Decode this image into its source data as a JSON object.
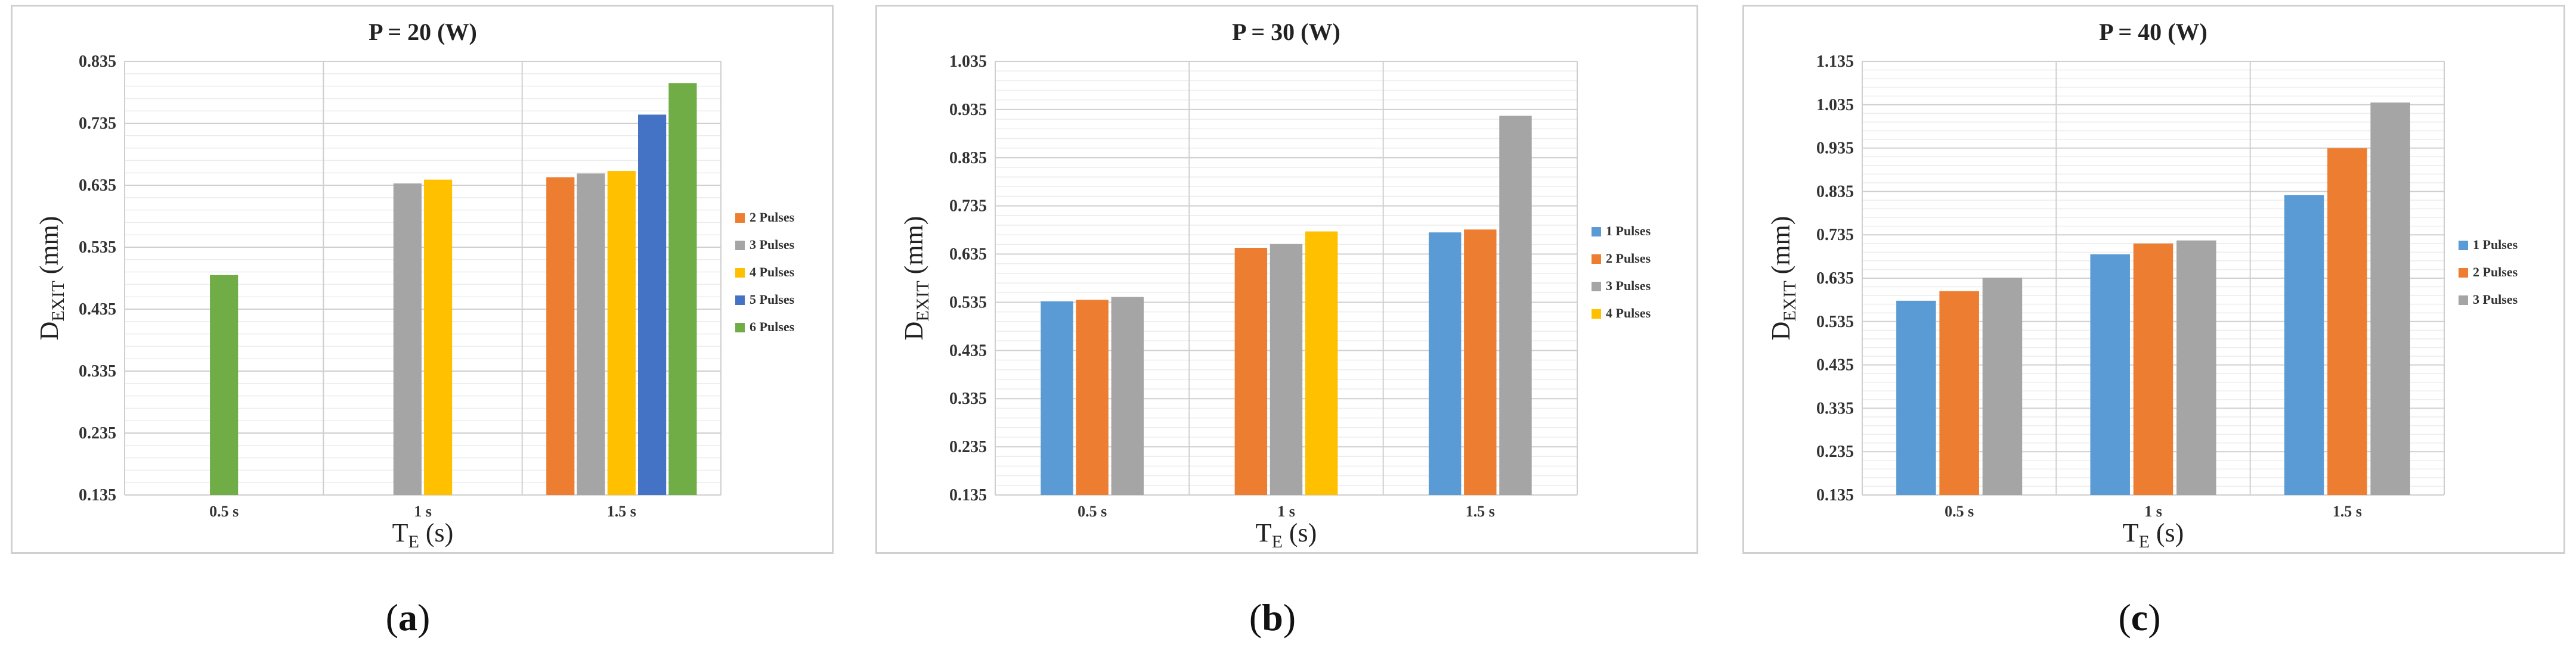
{
  "figure": {
    "captions": [
      "a",
      "b",
      "c"
    ]
  },
  "palette": {
    "1 Pulses": "#5b9bd5",
    "2 Pulses": "#ed7d31",
    "3 Pulses": "#a5a5a5",
    "4 Pulses": "#ffc000",
    "5 Pulses": "#4472c4",
    "6 Pulses": "#70ad47"
  },
  "chart_data": [
    {
      "type": "bar",
      "title": "P = 20 (W)",
      "xlabel": {
        "main": "T",
        "sub": "E",
        "unit": " (s)"
      },
      "ylabel": {
        "main": "D",
        "sub": "EXIT",
        "unit": " (mm)"
      },
      "ylim": [
        0.135,
        0.835
      ],
      "yticks": [
        "0.135",
        "0.235",
        "0.335",
        "0.435",
        "0.535",
        "0.635",
        "0.735",
        "0.835"
      ],
      "categories": [
        "0.5 s",
        "1 s",
        "1.5 s"
      ],
      "series": [
        {
          "name": "2 Pulses",
          "values": [
            null,
            null,
            0.648
          ]
        },
        {
          "name": "3 Pulses",
          "values": [
            null,
            0.638,
            0.654
          ]
        },
        {
          "name": "4 Pulses",
          "values": [
            null,
            0.644,
            0.658
          ]
        },
        {
          "name": "5 Pulses",
          "values": [
            null,
            null,
            0.749
          ]
        },
        {
          "name": "6 Pulses",
          "values": [
            0.49,
            null,
            0.8
          ]
        }
      ],
      "legend": [
        "2 Pulses",
        "3 Pulses",
        "4 Pulses",
        "5 Pulses",
        "6 Pulses"
      ],
      "legend_position": "right"
    },
    {
      "type": "bar",
      "title": "P = 30 (W)",
      "xlabel": {
        "main": "T",
        "sub": "E",
        "unit": " (s)"
      },
      "ylabel": {
        "main": "D",
        "sub": "EXIT",
        "unit": " (mm)"
      },
      "ylim": [
        0.135,
        1.035
      ],
      "yticks": [
        "0.135",
        "0.235",
        "0.335",
        "0.435",
        "0.535",
        "0.635",
        "0.735",
        "0.835",
        "0.935",
        "1.035"
      ],
      "categories": [
        "0.5 s",
        "1 s",
        "1.5 s"
      ],
      "series": [
        {
          "name": "1 Pulses",
          "values": [
            0.537,
            null,
            0.68
          ]
        },
        {
          "name": "2 Pulses",
          "values": [
            0.54,
            0.648,
            0.686
          ]
        },
        {
          "name": "3 Pulses",
          "values": [
            0.546,
            0.656,
            0.922
          ]
        },
        {
          "name": "4 Pulses",
          "values": [
            null,
            0.682,
            null
          ]
        }
      ],
      "legend": [
        "1 Pulses",
        "2 Pulses",
        "3 Pulses",
        "4 Pulses"
      ],
      "legend_position": "right"
    },
    {
      "type": "bar",
      "title": "P = 40 (W)",
      "xlabel": {
        "main": "T",
        "sub": "E",
        "unit": " (s)"
      },
      "ylabel": {
        "main": "D",
        "sub": "EXIT",
        "unit": " (mm)"
      },
      "ylim": [
        0.135,
        1.135
      ],
      "yticks": [
        "0.135",
        "0.235",
        "0.335",
        "0.435",
        "0.535",
        "0.635",
        "0.735",
        "0.835",
        "0.935",
        "1.035",
        "1.135"
      ],
      "categories": [
        "0.5 s",
        "1 s",
        "1.5 s"
      ],
      "series": [
        {
          "name": "1 Pulses",
          "values": [
            0.583,
            0.69,
            0.827
          ]
        },
        {
          "name": "2 Pulses",
          "values": [
            0.605,
            0.715,
            0.935
          ]
        },
        {
          "name": "3 Pulses",
          "values": [
            0.636,
            0.722,
            1.04
          ]
        }
      ],
      "legend": [
        "1 Pulses",
        "2 Pulses",
        "3 Pulses"
      ],
      "legend_position": "right"
    }
  ]
}
